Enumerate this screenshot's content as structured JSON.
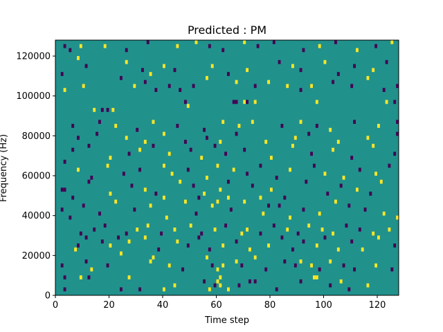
{
  "chart_data": {
    "type": "heatmap",
    "title": "Predicted : PM",
    "xlabel": "Time step",
    "ylabel": "Frequency (Hz)",
    "xlim": [
      0,
      128
    ],
    "ylim": [
      0,
      128000
    ],
    "xticks": [
      0,
      20,
      40,
      60,
      80,
      100,
      120
    ],
    "yticks": [
      0,
      20000,
      40000,
      60000,
      80000,
      100000,
      120000
    ],
    "xtick_labels": [
      "0",
      "20",
      "40",
      "60",
      "80",
      "100",
      "120"
    ],
    "ytick_labels": [
      "0",
      "20000",
      "40000",
      "60000",
      "80000",
      "100000",
      "120000"
    ],
    "grid": false,
    "values_legend": {
      "-1": "dark purple",
      "0": "teal (background)",
      "1": "yellow"
    },
    "colors": {
      "background": "#21918c",
      "low": "#440154",
      "high": "#fde725"
    },
    "cells": [
      [
        3,
        2000,
        -1
      ],
      [
        3,
        8000,
        -1
      ],
      [
        9,
        8000,
        1
      ],
      [
        12,
        8000,
        -1
      ],
      [
        24,
        2000,
        -1
      ],
      [
        27,
        8000,
        1
      ],
      [
        31,
        2000,
        -1
      ],
      [
        40,
        2000,
        1
      ],
      [
        44,
        4000,
        1
      ],
      [
        55,
        6000,
        -1
      ],
      [
        57,
        2000,
        1
      ],
      [
        59,
        4000,
        -1
      ],
      [
        60,
        6000,
        1
      ],
      [
        61,
        4000,
        1
      ],
      [
        61,
        8000,
        1
      ],
      [
        64,
        2000,
        1
      ],
      [
        68,
        4000,
        -1
      ],
      [
        72,
        6000,
        -1
      ],
      [
        74,
        6000,
        -1
      ],
      [
        82,
        2000,
        -1
      ],
      [
        91,
        6000,
        -1
      ],
      [
        96,
        8000,
        1
      ],
      [
        97,
        8000,
        1
      ],
      [
        102,
        4000,
        -1
      ],
      [
        106,
        6000,
        1
      ],
      [
        109,
        2000,
        -1
      ],
      [
        116,
        4000,
        1
      ],
      [
        2,
        14000,
        -1
      ],
      [
        11,
        16000,
        -1
      ],
      [
        13,
        12000,
        1
      ],
      [
        19,
        14000,
        -1
      ],
      [
        24,
        20000,
        1
      ],
      [
        35,
        16000,
        1
      ],
      [
        36,
        18000,
        1
      ],
      [
        42,
        14000,
        1
      ],
      [
        47,
        12000,
        -1
      ],
      [
        56,
        18000,
        1
      ],
      [
        58,
        14000,
        -1
      ],
      [
        60,
        12000,
        1
      ],
      [
        62,
        14000,
        1
      ],
      [
        67,
        16000,
        1
      ],
      [
        69,
        14000,
        -1
      ],
      [
        74,
        18000,
        1
      ],
      [
        78,
        12000,
        -1
      ],
      [
        85,
        16000,
        -1
      ],
      [
        89,
        14000,
        -1
      ],
      [
        91,
        16000,
        1
      ],
      [
        95,
        14000,
        1
      ],
      [
        98,
        12000,
        -1
      ],
      [
        102,
        16000,
        1
      ],
      [
        107,
        14000,
        -1
      ],
      [
        111,
        12000,
        -1
      ],
      [
        119,
        14000,
        1
      ],
      [
        125,
        12000,
        -1
      ],
      [
        7,
        22000,
        1
      ],
      [
        8,
        24000,
        -1
      ],
      [
        11,
        28000,
        -1
      ],
      [
        17,
        26000,
        -1
      ],
      [
        20,
        24000,
        1
      ],
      [
        23,
        28000,
        -1
      ],
      [
        27,
        26000,
        1
      ],
      [
        33,
        28000,
        1
      ],
      [
        38,
        22000,
        -1
      ],
      [
        45,
        26000,
        1
      ],
      [
        49,
        24000,
        -1
      ],
      [
        53,
        28000,
        -1
      ],
      [
        57,
        22000,
        -1
      ],
      [
        62,
        24000,
        1
      ],
      [
        67,
        26000,
        -1
      ],
      [
        72,
        22000,
        1
      ],
      [
        79,
        24000,
        1
      ],
      [
        84,
        28000,
        -1
      ],
      [
        88,
        22000,
        -1
      ],
      [
        92,
        26000,
        -1
      ],
      [
        97,
        24000,
        1
      ],
      [
        100,
        28000,
        -1
      ],
      [
        105,
        22000,
        1
      ],
      [
        110,
        26000,
        -1
      ],
      [
        114,
        22000,
        1
      ],
      [
        120,
        28000,
        1
      ],
      [
        126,
        24000,
        -1
      ],
      [
        9,
        30000,
        -1
      ],
      [
        14,
        32000,
        -1
      ],
      [
        18,
        34000,
        -1
      ],
      [
        26,
        30000,
        -1
      ],
      [
        30,
        32000,
        1
      ],
      [
        34,
        34000,
        1
      ],
      [
        39,
        30000,
        -1
      ],
      [
        44,
        32000,
        1
      ],
      [
        50,
        34000,
        1
      ],
      [
        54,
        30000,
        -1
      ],
      [
        59,
        32000,
        1
      ],
      [
        63,
        34000,
        -1
      ],
      [
        69,
        30000,
        1
      ],
      [
        71,
        32000,
        1
      ],
      [
        76,
        30000,
        -1
      ],
      [
        81,
        34000,
        -1
      ],
      [
        86,
        32000,
        1
      ],
      [
        90,
        30000,
        -1
      ],
      [
        94,
        34000,
        1
      ],
      [
        99,
        32000,
        1
      ],
      [
        103,
        30000,
        1
      ],
      [
        108,
        34000,
        -1
      ],
      [
        113,
        32000,
        -1
      ],
      [
        118,
        30000,
        1
      ],
      [
        124,
        32000,
        1
      ],
      [
        2,
        42000,
        -1
      ],
      [
        5,
        38000,
        -1
      ],
      [
        10,
        44000,
        -1
      ],
      [
        16,
        40000,
        -1
      ],
      [
        22,
        46000,
        1
      ],
      [
        29,
        42000,
        -1
      ],
      [
        35,
        44000,
        1
      ],
      [
        41,
        38000,
        1
      ],
      [
        48,
        46000,
        1
      ],
      [
        52,
        40000,
        -1
      ],
      [
        58,
        44000,
        1
      ],
      [
        65,
        42000,
        -1
      ],
      [
        70,
        46000,
        1
      ],
      [
        77,
        40000,
        1
      ],
      [
        83,
        44000,
        -1
      ],
      [
        87,
        38000,
        1
      ],
      [
        92,
        42000,
        -1
      ],
      [
        98,
        40000,
        1
      ],
      [
        104,
        46000,
        1
      ],
      [
        109,
        44000,
        -1
      ],
      [
        115,
        42000,
        -1
      ],
      [
        122,
        40000,
        1
      ],
      [
        127,
        38000,
        1
      ],
      [
        2,
        52000,
        -1
      ],
      [
        3,
        52000,
        -1
      ],
      [
        6,
        48000,
        -1
      ],
      [
        12,
        56000,
        -1
      ],
      [
        20,
        50000,
        1
      ],
      [
        28,
        54000,
        -1
      ],
      [
        33,
        52000,
        1
      ],
      [
        37,
        50000,
        -1
      ],
      [
        46,
        56000,
        1
      ],
      [
        51,
        54000,
        -1
      ],
      [
        55,
        50000,
        1
      ],
      [
        61,
        52000,
        1
      ],
      [
        64,
        56000,
        -1
      ],
      [
        73,
        54000,
        -1
      ],
      [
        80,
        52000,
        1
      ],
      [
        85,
        48000,
        -1
      ],
      [
        93,
        56000,
        -1
      ],
      [
        101,
        50000,
        -1
      ],
      [
        106,
        54000,
        -1
      ],
      [
        112,
        52000,
        1
      ],
      [
        117,
        50000,
        -1
      ],
      [
        121,
        56000,
        1
      ],
      [
        3,
        66000,
        -1
      ],
      [
        8,
        62000,
        1
      ],
      [
        13,
        58000,
        -1
      ],
      [
        19,
        64000,
        1
      ],
      [
        25,
        60000,
        -1
      ],
      [
        31,
        62000,
        -1
      ],
      [
        40,
        64000,
        1
      ],
      [
        43,
        60000,
        1
      ],
      [
        49,
        62000,
        -1
      ],
      [
        56,
        58000,
        1
      ],
      [
        60,
        64000,
        1
      ],
      [
        66,
        62000,
        1
      ],
      [
        71,
        60000,
        -1
      ],
      [
        76,
        64000,
        -1
      ],
      [
        82,
        58000,
        -1
      ],
      [
        87,
        62000,
        1
      ],
      [
        96,
        64000,
        -1
      ],
      [
        100,
        60000,
        1
      ],
      [
        107,
        58000,
        1
      ],
      [
        113,
        62000,
        -1
      ],
      [
        119,
        60000,
        1
      ],
      [
        124,
        64000,
        -1
      ],
      [
        6,
        72000,
        -1
      ],
      [
        12,
        74000,
        -1
      ],
      [
        20,
        68000,
        1
      ],
      [
        27,
        70000,
        -1
      ],
      [
        31,
        72000,
        1
      ],
      [
        36,
        74000,
        -1
      ],
      [
        42,
        70000,
        1
      ],
      [
        50,
        72000,
        -1
      ],
      [
        54,
        68000,
        1
      ],
      [
        59,
        74000,
        -1
      ],
      [
        63,
        70000,
        -1
      ],
      [
        70,
        72000,
        -1
      ],
      [
        80,
        68000,
        1
      ],
      [
        88,
        74000,
        1
      ],
      [
        95,
        70000,
        -1
      ],
      [
        103,
        72000,
        1
      ],
      [
        110,
        68000,
        -1
      ],
      [
        118,
        74000,
        1
      ],
      [
        126,
        70000,
        -1
      ],
      [
        8,
        78000,
        -1
      ],
      [
        15,
        80000,
        -1
      ],
      [
        26,
        78000,
        1
      ],
      [
        33,
        76000,
        1
      ],
      [
        40,
        80000,
        1
      ],
      [
        48,
        76000,
        -1
      ],
      [
        56,
        78000,
        -1
      ],
      [
        61,
        76000,
        1
      ],
      [
        67,
        80000,
        -1
      ],
      [
        78,
        76000,
        1
      ],
      [
        89,
        78000,
        1
      ],
      [
        94,
        80000,
        -1
      ],
      [
        105,
        76000,
        1
      ],
      [
        116,
        78000,
        1
      ],
      [
        127,
        80000,
        -1
      ],
      [
        6,
        84000,
        -1
      ],
      [
        16,
        86000,
        -1
      ],
      [
        22,
        84000,
        1
      ],
      [
        30,
        82000,
        -1
      ],
      [
        36,
        86000,
        1
      ],
      [
        45,
        84000,
        -1
      ],
      [
        55,
        82000,
        -1
      ],
      [
        62,
        86000,
        1
      ],
      [
        68,
        84000,
        1
      ],
      [
        73,
        86000,
        1
      ],
      [
        84,
        84000,
        -1
      ],
      [
        91,
        86000,
        1
      ],
      [
        97,
        84000,
        -1
      ],
      [
        102,
        82000,
        1
      ],
      [
        111,
        86000,
        -1
      ],
      [
        120,
        84000,
        1
      ],
      [
        127,
        86000,
        -1
      ],
      [
        14,
        92000,
        1
      ],
      [
        17,
        92000,
        -1
      ],
      [
        19,
        92000,
        -1
      ],
      [
        21,
        92000,
        1
      ],
      [
        48,
        96000,
        -1
      ],
      [
        49,
        94000,
        1
      ],
      [
        66,
        96000,
        -1
      ],
      [
        67,
        96000,
        -1
      ],
      [
        70,
        96000,
        1
      ],
      [
        71,
        96000,
        -1
      ],
      [
        74,
        96000,
        1
      ],
      [
        97,
        96000,
        1
      ],
      [
        123,
        96000,
        1
      ],
      [
        126,
        96000,
        -1
      ],
      [
        3,
        102000,
        1
      ],
      [
        10,
        104000,
        1
      ],
      [
        24,
        108000,
        -1
      ],
      [
        29,
        104000,
        1
      ],
      [
        33,
        106000,
        -1
      ],
      [
        37,
        102000,
        -1
      ],
      [
        42,
        104000,
        -1
      ],
      [
        46,
        102000,
        -1
      ],
      [
        51,
        104000,
        -1
      ],
      [
        56,
        108000,
        1
      ],
      [
        67,
        106000,
        1
      ],
      [
        74,
        104000,
        -1
      ],
      [
        79,
        106000,
        1
      ],
      [
        86,
        104000,
        1
      ],
      [
        91,
        102000,
        -1
      ],
      [
        95,
        104000,
        1
      ],
      [
        103,
        106000,
        -1
      ],
      [
        110,
        104000,
        -1
      ],
      [
        116,
        108000,
        1
      ],
      [
        122,
        102000,
        -1
      ],
      [
        127,
        104000,
        -1
      ],
      [
        2,
        110000,
        -1
      ],
      [
        8,
        118000,
        1
      ],
      [
        11,
        114000,
        -1
      ],
      [
        26,
        116000,
        1
      ],
      [
        32,
        112000,
        -1
      ],
      [
        35,
        110000,
        1
      ],
      [
        40,
        114000,
        1
      ],
      [
        44,
        112000,
        -1
      ],
      [
        58,
        114000,
        1
      ],
      [
        64,
        110000,
        -1
      ],
      [
        71,
        112000,
        1
      ],
      [
        83,
        116000,
        -1
      ],
      [
        88,
        114000,
        1
      ],
      [
        91,
        112000,
        -1
      ],
      [
        100,
        116000,
        1
      ],
      [
        105,
        110000,
        -1
      ],
      [
        111,
        114000,
        -1
      ],
      [
        118,
        112000,
        1
      ],
      [
        123,
        116000,
        -1
      ],
      [
        3,
        124000,
        -1
      ],
      [
        5,
        122000,
        -1
      ],
      [
        9,
        124000,
        1
      ],
      [
        18,
        124000,
        1
      ],
      [
        26,
        122000,
        -1
      ],
      [
        34,
        126000,
        -1
      ],
      [
        45,
        124000,
        1
      ],
      [
        52,
        126000,
        1
      ],
      [
        57,
        124000,
        -1
      ],
      [
        62,
        122000,
        -1
      ],
      [
        70,
        126000,
        1
      ],
      [
        75,
        124000,
        -1
      ],
      [
        81,
        126000,
        -1
      ],
      [
        92,
        122000,
        -1
      ],
      [
        98,
        124000,
        1
      ],
      [
        104,
        126000,
        -1
      ],
      [
        112,
        122000,
        1
      ],
      [
        119,
        124000,
        -1
      ],
      [
        125,
        126000,
        1
      ],
      [
        40,
        48000,
        1
      ],
      [
        53,
        48000,
        -1
      ],
      [
        60,
        46000,
        1
      ],
      [
        64,
        48000,
        1
      ],
      [
        76,
        48000,
        1
      ],
      [
        79,
        44000,
        -1
      ]
    ]
  }
}
